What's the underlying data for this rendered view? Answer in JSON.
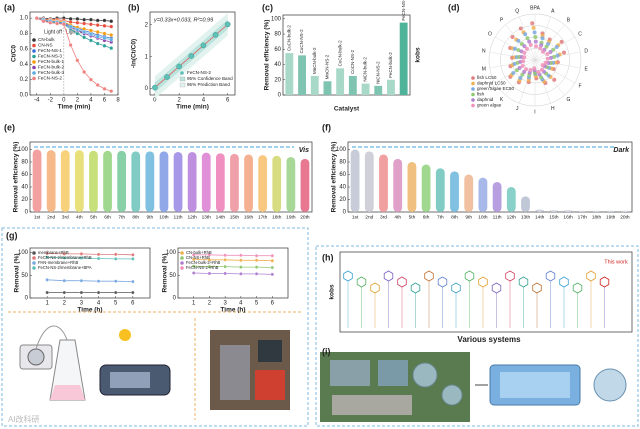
{
  "watermark": "AI改科研",
  "panels": [
    {
      "label": "(a)",
      "type": "line",
      "xlabel": "Time (min)",
      "ylabel": "Ct/C0",
      "annotations": [
        "Light off",
        "Light on"
      ],
      "xlim": [
        -5,
        8
      ],
      "xticks": [
        -4,
        -2,
        0,
        2,
        4,
        6,
        8
      ],
      "ylim": [
        0,
        1.08
      ],
      "yticks": [
        {
          "value": 0,
          "label": "0.0"
        },
        0.2,
        0.4,
        0.6,
        0.8,
        {
          "value": 1,
          "label": "1.0"
        }
      ],
      "x": [
        -4,
        -3,
        -2,
        -1,
        0,
        1,
        2,
        3,
        4,
        5,
        6,
        7
      ],
      "series": [
        {
          "name": "CN-bulk",
          "color": "#333333",
          "values": [
            1,
            1,
            0.99,
            1,
            1,
            0.99,
            0.99,
            0.98,
            0.98,
            0.97,
            0.97,
            0.96
          ]
        },
        {
          "name": "CN-NS",
          "color": "#e74c3c",
          "values": [
            1,
            0.99,
            0.98,
            0.98,
            0.97,
            0.95,
            0.94,
            0.93,
            0.92,
            0.91,
            0.9,
            0.89
          ]
        },
        {
          "name": "FeCN-NS-1",
          "color": "#3b6fd6",
          "values": [
            1,
            0.98,
            0.96,
            0.95,
            0.94,
            0.9,
            0.87,
            0.84,
            0.81,
            0.78,
            0.76,
            0.74
          ]
        },
        {
          "name": "FeCN-NS-3",
          "color": "#2aa198",
          "values": [
            1,
            0.97,
            0.95,
            0.94,
            0.92,
            0.86,
            0.8,
            0.75,
            0.71,
            0.67,
            0.64,
            0.61
          ]
        },
        {
          "name": "FeCN-bulk-1",
          "color": "#f39c12",
          "values": [
            1,
            0.98,
            0.97,
            0.96,
            0.95,
            0.91,
            0.88,
            0.86,
            0.84,
            0.82,
            0.8,
            0.78
          ]
        },
        {
          "name": "FeCN-bulk-2",
          "color": "#8e44ad",
          "values": [
            1,
            0.97,
            0.96,
            0.95,
            0.93,
            0.88,
            0.84,
            0.8,
            0.77,
            0.74,
            0.71,
            0.69
          ]
        },
        {
          "name": "FeCN-bulk-3",
          "color": "#5dade2",
          "values": [
            1,
            0.98,
            0.96,
            0.95,
            0.94,
            0.89,
            0.85,
            0.82,
            0.79,
            0.76,
            0.74,
            0.72
          ]
        },
        {
          "name": "FeCN-NS-2",
          "color": "#f08080",
          "values": [
            1,
            0.96,
            0.94,
            0.93,
            0.92,
            0.65,
            0.45,
            0.3,
            0.2,
            0.13,
            0.08,
            0.05
          ]
        }
      ]
    },
    {
      "label": "(b)",
      "type": "fit",
      "xlabel": "Time (min)",
      "ylabel": "-ln(Ct/C0)",
      "equation": "y=0.33x+0.033, R²=0.99",
      "xlim": [
        -0.4,
        6.6
      ],
      "xticks": [
        0,
        2,
        4,
        6
      ],
      "ylim": [
        -0.2,
        2.4
      ],
      "yticks": [
        0,
        1,
        2
      ],
      "x": [
        0,
        1,
        2,
        3,
        4,
        5,
        6
      ],
      "series": [
        {
          "name": "FeCN-NS-2",
          "color": "#5fc0b8",
          "values": [
            0.033,
            0.363,
            0.693,
            1.023,
            1.353,
            1.683,
            2.013
          ]
        }
      ],
      "bands": [
        {
          "name": "95% Confidence Band",
          "color": "#b9e3dc"
        },
        {
          "name": "95% Prediction Band",
          "color": "#e2f3ef"
        }
      ]
    },
    {
      "label": "(c)",
      "type": "bar",
      "xlabel": "Catalyst",
      "ylabel": "Removal efficiency (%)",
      "y2label": "kobs",
      "ylim": [
        0,
        105
      ],
      "yticks": [
        0,
        20,
        40,
        60,
        80,
        100
      ],
      "categories": [
        "CuCN-bulk-2",
        "CuCN-NS-2",
        "MnCN-bulk-2",
        "MnCN-NS-2",
        "CoCN-bulk-2",
        "CoCN-NS-2",
        "NiCN-bulk-2",
        "NiCN-NS-2",
        "FeCN-bulk-2",
        "FeCN-NS-2"
      ],
      "values": [
        55,
        52,
        25,
        18,
        35,
        25,
        15,
        12,
        20,
        95
      ],
      "colors": [
        "#a8d8c8",
        "#7fc4b0",
        "#a8d8c8",
        "#7fc4b0",
        "#a8d8c8",
        "#7fc4b0",
        "#a8d8c8",
        "#7fc4b0",
        "#a8d8c8",
        "#4fb39a"
      ]
    },
    {
      "label": "(d)",
      "type": "radar",
      "rlim": [
        0,
        100
      ],
      "rticks": [
        25,
        50,
        75,
        100
      ],
      "spokes": [
        "BPA",
        "A",
        "B",
        "C",
        "D",
        "E",
        "F",
        "G",
        "H",
        "I",
        "J",
        "K",
        "L",
        "M",
        "N",
        "O",
        "P",
        "Q"
      ],
      "series": [
        {
          "name": "fish LC50",
          "color": "#e07a7a",
          "values": [
            80,
            60,
            55,
            70,
            65,
            50,
            45,
            60,
            55,
            40,
            50,
            60,
            65,
            55,
            50,
            60,
            70,
            75
          ]
        },
        {
          "name": "daphnid LC50",
          "color": "#f0b050",
          "values": [
            70,
            55,
            50,
            60,
            55,
            45,
            40,
            50,
            50,
            35,
            45,
            55,
            60,
            50,
            45,
            55,
            60,
            65
          ]
        },
        {
          "name": "green algae EC50",
          "color": "#7aa8e0",
          "values": [
            60,
            50,
            45,
            55,
            50,
            40,
            35,
            45,
            45,
            30,
            40,
            50,
            55,
            45,
            40,
            50,
            55,
            60
          ]
        },
        {
          "name": "fish",
          "color": "#90c870",
          "values": [
            50,
            40,
            38,
            45,
            42,
            35,
            30,
            38,
            40,
            28,
            35,
            42,
            45,
            38,
            35,
            42,
            45,
            50
          ]
        },
        {
          "name": "daphnid",
          "color": "#b080d0",
          "values": [
            40,
            35,
            30,
            38,
            35,
            30,
            25,
            32,
            33,
            22,
            30,
            35,
            38,
            32,
            30,
            35,
            38,
            42
          ]
        },
        {
          "name": "green algae",
          "color": "#f090b8",
          "values": [
            30,
            28,
            25,
            30,
            28,
            24,
            20,
            26,
            27,
            18,
            24,
            28,
            30,
            26,
            24,
            28,
            30,
            34
          ]
        }
      ]
    },
    {
      "label": "(e)",
      "type": "bar",
      "note": "Vis",
      "ylabel": "Removal efficiency (%)",
      "ylim": [
        0,
        112
      ],
      "yticks": [
        0,
        20,
        40,
        60,
        80,
        100
      ],
      "categories": [
        "1st",
        "2nd",
        "3rd",
        "4th",
        "5th",
        "6th",
        "7th",
        "8th",
        "9th",
        "10th",
        "11th",
        "12th",
        "13th",
        "14th",
        "15th",
        "16th",
        "17th",
        "18th",
        "19th",
        "20th"
      ],
      "values": [
        100,
        99,
        99,
        99,
        98,
        98,
        98,
        97,
        97,
        97,
        96,
        96,
        95,
        94,
        93,
        92,
        91,
        90,
        88,
        85
      ],
      "colors": [
        "#f2a0a0",
        "#f6b98a",
        "#f8d27a",
        "#e8e07a",
        "#c8e07a",
        "#a0d890",
        "#88d0a8",
        "#80ccc4",
        "#80c0e0",
        "#90a8e8",
        "#a898e8",
        "#c090e0",
        "#e090d8",
        "#f090c0",
        "#f0a0a8",
        "#f4b090",
        "#f8c880",
        "#d8dc80",
        "#a8d898",
        "#e87890"
      ]
    },
    {
      "label": "(f)",
      "type": "bar",
      "note": "Dark",
      "ylabel": "Removal efficiency (%)",
      "ylim": [
        0,
        112
      ],
      "yticks": [
        0,
        20,
        40,
        60,
        80,
        100
      ],
      "categories": [
        "1st",
        "2nd",
        "3rd",
        "4th",
        "5th",
        "6th",
        "7th",
        "8th",
        "9th",
        "10th",
        "11th",
        "12th",
        "13th",
        "14th",
        "15th",
        "16th",
        "17th",
        "18th",
        "19th",
        "20th"
      ],
      "values": [
        100,
        97,
        92,
        85,
        80,
        76,
        70,
        65,
        60,
        55,
        48,
        40,
        25,
        4,
        3,
        3,
        2,
        2,
        2,
        2
      ],
      "colors": [
        "#c8ccd8",
        "#d0d0d8",
        "#f0a0a0",
        "#e0a0c8",
        "#f0c080",
        "#a0d890",
        "#80ccc4",
        "#80c0e0",
        "#f0c0a0",
        "#a8b8e8",
        "#b8a0e0",
        "#88d0c8",
        "#c0c8d8",
        "#d0d4e0",
        "#d0d4e0",
        "#d0d4e0",
        "#d0d4e0",
        "#d0d4e0",
        "#d0d4e0",
        "#d0d4e0"
      ]
    },
    {
      "label": "(g)",
      "type": "multi",
      "plots": [
        {
          "xlabel": "Time (h)",
          "ylabel": "Removal (%)",
          "xlim": [
            0,
            7
          ],
          "xticks": [
            1,
            2,
            3,
            4,
            5,
            6
          ],
          "ylim": [
            0,
            110
          ],
          "yticks": [
            0,
            50,
            100
          ],
          "x": [
            1,
            2,
            3,
            4,
            5,
            6
          ],
          "series": [
            {
              "name": "membrane+RhB",
              "color": "#555555",
              "values": [
                12,
                12,
                12,
                12,
                12,
                12
              ]
            },
            {
              "name": "FeCN-NS-2/membrane+RhB",
              "color": "#e07a7a",
              "values": [
                98,
                97,
                97,
                96,
                96,
                95
              ]
            },
            {
              "name": "PAN-membrane+RhB",
              "color": "#7aa8e0",
              "values": [
                40,
                38,
                38,
                37,
                37,
                36
              ]
            },
            {
              "name": "FeCN-NS-2/membrane+BPA",
              "color": "#5fc0b8",
              "values": [
                90,
                88,
                88,
                87,
                86,
                86
              ]
            }
          ]
        },
        {
          "xlabel": "Time (h)",
          "ylabel": "Removal (%)",
          "xlim": [
            0,
            7
          ],
          "xticks": [
            1,
            2,
            3,
            4,
            5,
            6
          ],
          "ylim": [
            0,
            110
          ],
          "yticks": [
            0,
            50,
            100
          ],
          "x": [
            1,
            2,
            3,
            4,
            5,
            6
          ],
          "series": [
            {
              "name": "CN-bulk+RhB",
              "color": "#f0b050",
              "values": [
                85,
                84,
                84,
                83,
                83,
                82
              ]
            },
            {
              "name": "CN-NS+RhB",
              "color": "#90c870",
              "values": [
                70,
                69,
                69,
                68,
                68,
                67
              ]
            },
            {
              "name": "FeCN-bulk-2+RhB",
              "color": "#b080d0",
              "values": [
                55,
                54,
                54,
                53,
                53,
                52
              ]
            },
            {
              "name": "FeCN-NS-2+RhB",
              "color": "#f090b8",
              "values": [
                95,
                95,
                94,
                94,
                93,
                93
              ]
            }
          ]
        }
      ]
    },
    {
      "label": "(h)",
      "type": "systems",
      "xlabel": "Various systems",
      "ylabel": "kobs",
      "note": "This work"
    },
    {
      "label": "(i)",
      "type": "photo"
    }
  ]
}
